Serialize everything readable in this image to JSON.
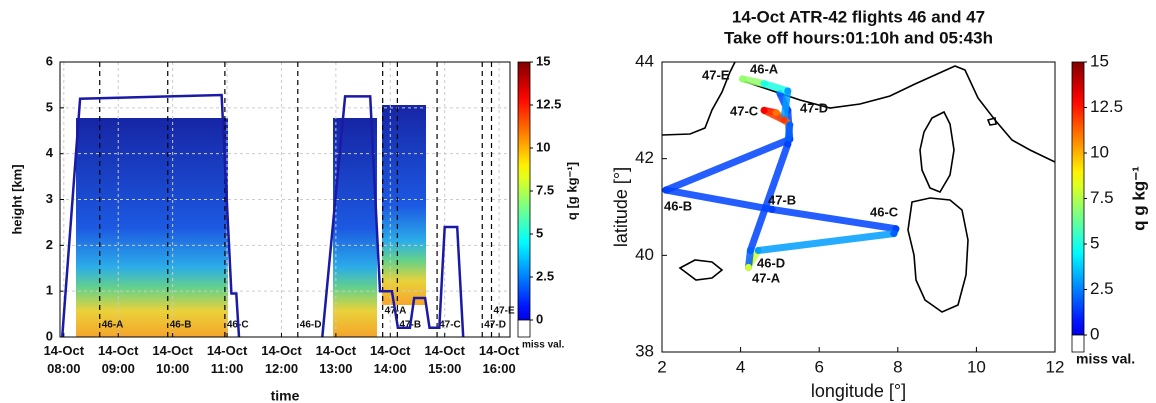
{
  "chart_data": [
    {
      "type": "line",
      "xlabel": "time",
      "ylabel": "height [km]",
      "xlim": [
        7.93,
        16.2
      ],
      "xticks": [
        {
          "value": 8,
          "label": "14-Oct 08:00"
        },
        {
          "value": 9,
          "label": "14-Oct 09:00"
        },
        {
          "value": 10,
          "label": "14-Oct 10:00"
        },
        {
          "value": 11,
          "label": "14-Oct 11:00"
        },
        {
          "value": 12,
          "label": "14-Oct 12:00"
        },
        {
          "value": 13,
          "label": "14-Oct 13:00"
        },
        {
          "value": 14,
          "label": "14-Oct 14:00"
        },
        {
          "value": 15,
          "label": "14-Oct 15:00"
        },
        {
          "value": 16,
          "label": "14-Oct 16:00"
        }
      ],
      "ylim": [
        0,
        6
      ],
      "yticks": [
        0,
        1,
        2,
        3,
        4,
        5,
        6
      ],
      "grid": true,
      "color": "#1a1aa6",
      "x": [
        7.97,
        8.3,
        10.9,
        11.08,
        11.17,
        11.22,
        12.0,
        12.75,
        13.17,
        13.63,
        13.81,
        14.03,
        14.14,
        14.36,
        14.44,
        14.64,
        14.72,
        14.9,
        15.0,
        15.23,
        15.34
      ],
      "values": [
        0,
        5.2,
        5.28,
        0.95,
        0.95,
        0,
        null,
        0,
        5.25,
        5.25,
        1.0,
        1.0,
        0.2,
        0.2,
        0.85,
        0.85,
        0.2,
        0.2,
        2.4,
        2.4,
        0
      ],
      "annotations": [
        {
          "label": "46-A",
          "x": 8.66
        },
        {
          "label": "46-B",
          "x": 9.91
        },
        {
          "label": "46-C",
          "x": 10.96
        },
        {
          "label": "46-D",
          "x": 12.3
        },
        {
          "label": "47-A",
          "x": 13.86
        },
        {
          "label": "47-B",
          "x": 14.13
        },
        {
          "label": "47-C",
          "x": 14.86
        },
        {
          "label": "47-D",
          "x": 15.69
        },
        {
          "label": "47-E",
          "x": 15.86
        }
      ],
      "colorbar": {
        "label": "q [g kg⁻¹]",
        "lim": [
          0,
          15
        ],
        "ticks": [
          0,
          2.5,
          5,
          7.5,
          10,
          12.5,
          15
        ],
        "missing_label": "miss val."
      }
    },
    {
      "type": "track",
      "title": [
        "14-Oct ATR-42 flights 46 and 47",
        "Take off hours:01:10h and 05:43h"
      ],
      "xlabel": "longitude [°]",
      "ylabel": "latitude [°]",
      "xlim": [
        2,
        12
      ],
      "xticks": [
        2,
        4,
        6,
        8,
        10,
        12
      ],
      "ylim": [
        38,
        44
      ],
      "yticks": [
        38,
        40,
        42,
        44
      ],
      "tracks": [
        {
          "x": [
            5.0,
            5.2,
            5.25,
            2.1,
            4.8,
            7.95,
            7.9,
            4.45,
            4.25
          ],
          "y": [
            43.35,
            43.0,
            42.4,
            41.35,
            40.95,
            40.55,
            40.45,
            40.1,
            39.85
          ],
          "q": [
            2,
            1.5,
            1.5,
            1.5,
            1.5,
            1.5,
            2,
            3,
            8
          ]
        },
        {
          "x": [
            4.2,
            4.25,
            5.2,
            5.25,
            4.9,
            4.6,
            5.1,
            5.2,
            4.6,
            4.05
          ],
          "y": [
            39.75,
            40.1,
            42.3,
            42.7,
            42.95,
            43.0,
            42.8,
            43.4,
            43.55,
            43.65
          ],
          "q": [
            8,
            2,
            1.5,
            2,
            11,
            13,
            12,
            3,
            5,
            7
          ]
        }
      ],
      "point_labels": [
        "47-E",
        "46-A",
        "47-C",
        "47-D",
        "46-B",
        "47-B",
        "46-C",
        "46-D",
        "47-A"
      ],
      "colorbar": {
        "label": "q g kg⁻¹",
        "lim": [
          0,
          15
        ],
        "ticks": [
          0,
          2.5,
          5,
          7.5,
          10,
          12.5,
          15
        ],
        "missing_label": "miss val."
      }
    }
  ]
}
